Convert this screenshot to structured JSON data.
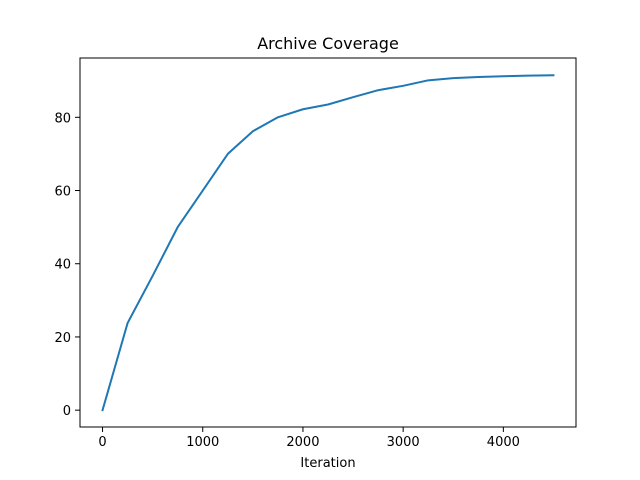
{
  "chart_data": {
    "type": "line",
    "title": "Archive Coverage",
    "xlabel": "Iteration",
    "ylabel": "",
    "xlim": [
      -225,
      4725
    ],
    "ylim": [
      -4.6,
      96.2
    ],
    "xticks": [
      0,
      1000,
      2000,
      3000,
      4000
    ],
    "yticks": [
      0,
      20,
      40,
      60,
      80
    ],
    "grid": false,
    "legend": "none",
    "series": [
      {
        "color": "#1f77b4",
        "x": [
          0,
          250,
          500,
          750,
          1000,
          1250,
          1500,
          1750,
          2000,
          2250,
          2500,
          2750,
          3000,
          3250,
          3500,
          3750,
          4000,
          4250,
          4500
        ],
        "y": [
          0,
          23.8,
          36.7,
          50.0,
          60.0,
          70.0,
          76.2,
          80.0,
          82.2,
          83.5,
          85.5,
          87.4,
          88.6,
          90.1,
          90.7,
          91.0,
          91.2,
          91.4,
          91.5
        ]
      }
    ]
  }
}
